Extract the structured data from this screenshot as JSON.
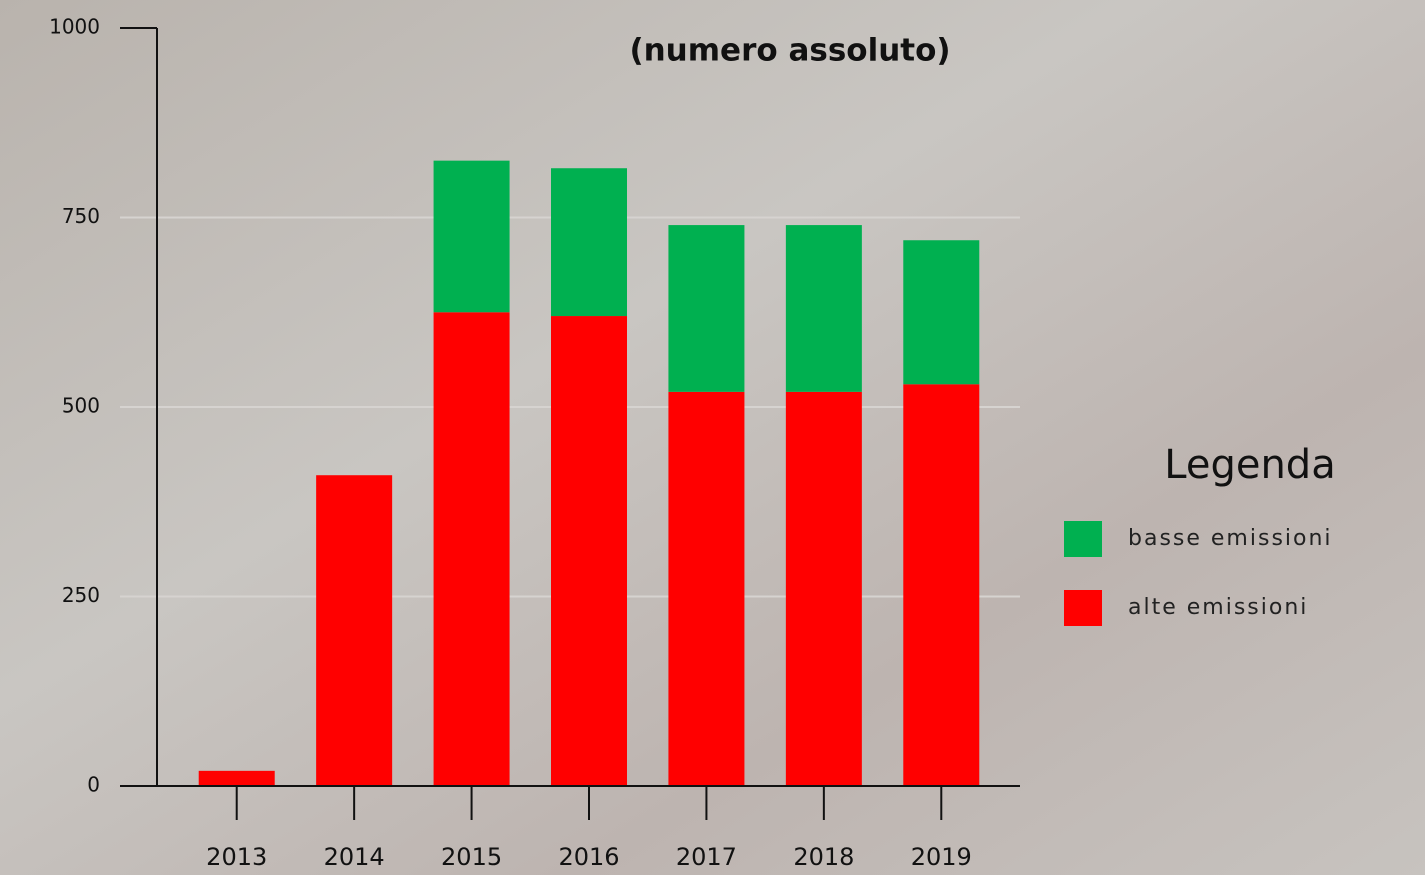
{
  "chart_data": {
    "type": "stacked_bar",
    "title": "(numero assoluto)",
    "categories": [
      "2013",
      "2014",
      "2015",
      "2016",
      "2017",
      "2018",
      "2019"
    ],
    "series": [
      {
        "name": "alte emissioni",
        "color": "#ff0000",
        "values": [
          20,
          410,
          625,
          620,
          520,
          520,
          530
        ]
      },
      {
        "name": "basse emissioni",
        "color": "#00b050",
        "values": [
          0,
          0,
          200,
          195,
          220,
          220,
          190
        ]
      }
    ],
    "ylim": [
      0,
      1000
    ],
    "yticks": [
      0,
      250,
      500,
      750,
      1000
    ],
    "grid": true,
    "legend_title": "Legenda",
    "legend": "right"
  }
}
